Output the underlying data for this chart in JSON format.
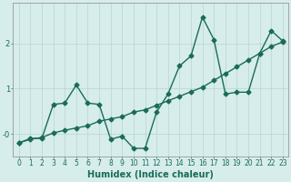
{
  "xlabel": "Humidex (Indice chaleur)",
  "background_color": "#d6edeb",
  "grid_color": "#b8d4d0",
  "line_color": "#1a6b5a",
  "xlim": [
    -0.5,
    23.5
  ],
  "ylim": [
    -0.5,
    2.9
  ],
  "yticks": [
    0,
    1,
    2
  ],
  "ytick_labels": [
    "-0",
    "1",
    "2"
  ],
  "xticks": [
    0,
    1,
    2,
    3,
    4,
    5,
    6,
    7,
    8,
    9,
    10,
    11,
    12,
    13,
    14,
    15,
    16,
    17,
    18,
    19,
    20,
    21,
    22,
    23
  ],
  "series1_x": [
    0,
    1,
    2,
    3,
    4,
    5,
    6,
    7,
    8,
    9,
    10,
    11,
    12,
    13,
    14,
    15,
    16,
    17,
    18,
    19,
    20,
    21,
    22,
    23
  ],
  "series1_y": [
    -0.2,
    -0.1,
    -0.1,
    0.65,
    0.68,
    1.08,
    0.68,
    0.65,
    -0.12,
    -0.05,
    -0.32,
    -0.32,
    0.48,
    0.88,
    1.5,
    1.72,
    2.58,
    2.08,
    0.88,
    0.92,
    0.92,
    1.78,
    2.28,
    2.05
  ],
  "series2_x": [
    0,
    1,
    2,
    3,
    4,
    5,
    6,
    7,
    8,
    9,
    10,
    11,
    12,
    13,
    14,
    15,
    16,
    17,
    18,
    19,
    20,
    21,
    22,
    23
  ],
  "series2_y": [
    -0.2,
    -0.12,
    -0.08,
    0.02,
    0.08,
    0.13,
    0.18,
    0.28,
    0.33,
    0.38,
    0.48,
    0.53,
    0.63,
    0.73,
    0.83,
    0.93,
    1.03,
    1.18,
    1.33,
    1.48,
    1.63,
    1.78,
    1.93,
    2.03
  ],
  "marker": "D",
  "marker_size": 2.5,
  "linewidth": 1.0,
  "font_size": 6.5,
  "xlabel_fontsize": 7,
  "tick_fontsize": 5.5
}
